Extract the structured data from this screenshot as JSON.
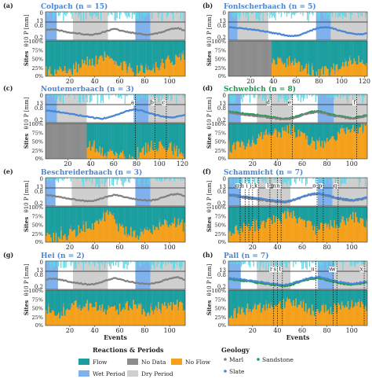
{
  "chart_data": {
    "type": "composite",
    "xlabel": "Events",
    "ylabels": {
      "precip": "P [mm]",
      "theta": "θ10",
      "sites": "Sites"
    },
    "precip_ticks": [
      "0",
      "13"
    ],
    "theta_ticks": [
      "0.8",
      "0.2"
    ],
    "sites_ticks": [
      "100%",
      "75%",
      "50%",
      "25%",
      "0%"
    ],
    "legend": {
      "reactions_title": "Reactions & Periods",
      "geology_title": "Geology",
      "items": [
        {
          "key": "flow",
          "label": "Flow",
          "color": "#1a9e9e"
        },
        {
          "key": "nodata",
          "label": "No Data",
          "color": "#8c8c8c"
        },
        {
          "key": "noflow",
          "label": "No Flow",
          "color": "#f5a01a"
        },
        {
          "key": "wet",
          "label": "Wet Period",
          "color": "#7fb2ec"
        },
        {
          "key": "dry",
          "label": "Dry Period",
          "color": "#cfcfcf"
        }
      ],
      "geology": [
        {
          "key": "marl",
          "label": "Marl",
          "color": "#808080"
        },
        {
          "key": "sandstone",
          "label": "Sandstone",
          "color": "#1c9c4c"
        },
        {
          "key": "slate",
          "label": "Slate",
          "color": "#4a86d4"
        }
      ]
    },
    "panels": [
      {
        "label": "(a)",
        "title": "Colpach (n = 15)",
        "title_color": "#4a86d4",
        "n_events": 112,
        "x_ticks": [
          20,
          40,
          60,
          80,
          100
        ],
        "periods": [
          {
            "type": "wet",
            "start": 1,
            "end": 9
          },
          {
            "type": "dry",
            "start": 23,
            "end": 50
          },
          {
            "type": "wet",
            "start": 73,
            "end": 84
          },
          {
            "type": "dry",
            "start": 85,
            "end": 112
          }
        ],
        "theta": [
          {
            "geology": "marl",
            "series": [
              0.58,
              0.62,
              0.55,
              0.48,
              0.42,
              0.38,
              0.32,
              0.36,
              0.44,
              0.56,
              0.64,
              0.52,
              0.46,
              0.4,
              0.36,
              0.34,
              0.4,
              0.5,
              0.62,
              0.68,
              0.56
            ]
          }
        ],
        "sites": {
          "nodata_first": 0,
          "noflow_profile": [
            0.1,
            0.12,
            0.2,
            0.35,
            0.45,
            0.55,
            0.3,
            0.15,
            0.18,
            0.3,
            0.45,
            0.6
          ]
        },
        "annotations": []
      },
      {
        "label": "(b)",
        "title": "Fonlscherbaach (n = 5)",
        "title_color": "#4a86d4",
        "n_events": 122,
        "x_ticks": [
          20,
          40,
          60,
          80,
          100,
          120
        ],
        "periods": [
          {
            "type": "wet",
            "start": 1,
            "end": 8
          },
          {
            "type": "dry",
            "start": 9,
            "end": 35
          },
          {
            "type": "wet",
            "start": 78,
            "end": 90
          },
          {
            "type": "dry",
            "start": 91,
            "end": 122
          }
        ],
        "theta": [
          {
            "geology": "slate",
            "series": [
              0.72,
              0.7,
              0.66,
              0.62,
              0.58,
              0.52,
              0.45,
              0.4,
              0.32,
              0.26,
              0.3,
              0.42,
              0.56,
              0.7,
              0.74,
              0.68,
              0.56,
              0.46,
              0.38,
              0.34,
              0.4
            ]
          }
        ],
        "sites": {
          "nodata_first": 38,
          "noflow_profile": [
            0.05,
            0.08,
            0.15,
            0.3,
            0.45,
            0.4,
            0.2,
            0.1,
            0.15,
            0.3,
            0.5,
            0.35
          ]
        },
        "annotations": []
      },
      {
        "label": "(c)",
        "title": "Noutemerbaach (n = 3)",
        "title_color": "#4a86d4",
        "n_events": 122,
        "x_ticks": [
          20,
          40,
          60,
          80,
          100,
          120
        ],
        "periods": [
          {
            "type": "wet",
            "start": 1,
            "end": 10
          },
          {
            "type": "dry",
            "start": 11,
            "end": 36
          },
          {
            "type": "wet",
            "start": 78,
            "end": 90
          },
          {
            "type": "dry",
            "start": 91,
            "end": 122
          }
        ],
        "theta": [
          {
            "geology": "slate",
            "series": [
              0.7,
              0.66,
              0.6,
              0.54,
              0.48,
              0.42,
              0.36,
              0.3,
              0.26,
              0.32,
              0.44,
              0.58,
              0.7,
              0.74,
              0.66,
              0.54,
              0.44,
              0.36,
              0.32,
              0.38,
              0.46
            ]
          }
        ],
        "sites": {
          "nodata_first": 36,
          "noflow_profile": [
            0.1,
            0.2,
            0.35,
            0.4,
            0.35,
            0.1,
            0.05,
            0.1,
            0.3,
            0.4,
            0.3,
            0.1
          ]
        },
        "annotations": [
          {
            "letter": "a",
            "event": 79
          },
          {
            "letter": "b",
            "event": 96
          },
          {
            "letter": "c",
            "event": 106
          }
        ]
      },
      {
        "label": "(d)",
        "title": "Schwebich (n = 8)",
        "title_color": "#1c9c4c",
        "n_events": 112,
        "x_ticks": [
          20,
          40,
          60,
          80,
          100
        ],
        "periods": [
          {
            "type": "wet",
            "start": 1,
            "end": 10
          },
          {
            "type": "dry",
            "start": 24,
            "end": 52
          },
          {
            "type": "wet",
            "start": 73,
            "end": 85
          },
          {
            "type": "dry",
            "start": 86,
            "end": 112
          }
        ],
        "theta": [
          {
            "geology": "sandstone",
            "series": [
              0.62,
              0.58,
              0.54,
              0.5,
              0.46,
              0.42,
              0.36,
              0.3,
              0.26,
              0.3,
              0.4,
              0.52,
              0.62,
              0.66,
              0.58,
              0.48,
              0.4,
              0.34,
              0.3,
              0.36,
              0.44
            ]
          },
          {
            "geology": "marl",
            "series": [
              0.56,
              0.52,
              0.48,
              0.44,
              0.4,
              0.36,
              0.3,
              0.26,
              0.22,
              0.26,
              0.36,
              0.48,
              0.56,
              0.6,
              0.52,
              0.42,
              0.36,
              0.3,
              0.26,
              0.32,
              0.4
            ]
          }
        ],
        "sites": {
          "nodata_first": 0,
          "noflow_profile": [
            0.3,
            0.35,
            0.5,
            0.65,
            0.75,
            0.85,
            0.6,
            0.4,
            0.5,
            0.7,
            0.8,
            0.9
          ]
        },
        "annotations": [
          {
            "letter": "d",
            "event": 35
          },
          {
            "letter": "e",
            "event": 52
          },
          {
            "letter": "f",
            "event": 104
          }
        ]
      },
      {
        "label": "(e)",
        "title": "Beschreiderbaach (n = 3)",
        "title_color": "#4a86d4",
        "n_events": 112,
        "x_ticks": [
          20,
          40,
          60,
          80,
          100
        ],
        "periods": [
          {
            "type": "wet",
            "start": 1,
            "end": 8
          },
          {
            "type": "dry",
            "start": 22,
            "end": 50
          },
          {
            "type": "wet",
            "start": 73,
            "end": 84
          },
          {
            "type": "dry",
            "start": 85,
            "end": 112
          }
        ],
        "theta": [
          {
            "geology": "marl",
            "series": [
              0.62,
              0.58,
              0.52,
              0.46,
              0.4,
              0.34,
              0.3,
              0.34,
              0.44,
              0.56,
              0.64,
              0.54,
              0.46,
              0.4,
              0.36,
              0.34,
              0.4,
              0.52,
              0.64,
              0.68,
              0.58
            ]
          }
        ],
        "sites": {
          "nodata_first": 0,
          "noflow_profile": [
            0.1,
            0.15,
            0.25,
            0.4,
            0.55,
            0.8,
            0.35,
            0.2,
            0.25,
            0.4,
            0.6,
            0.45
          ]
        },
        "annotations": []
      },
      {
        "label": "(f)",
        "title": "Schammicht (n = 7)",
        "title_color": "#4a86d4",
        "n_events": 112,
        "x_ticks": [
          20,
          40,
          60,
          80,
          100
        ],
        "periods": [
          {
            "type": "wet",
            "start": 1,
            "end": 10
          },
          {
            "type": "dry",
            "start": 24,
            "end": 50
          },
          {
            "type": "wet",
            "start": 73,
            "end": 84
          },
          {
            "type": "dry",
            "start": 85,
            "end": 112
          }
        ],
        "theta": [
          {
            "geology": "marl",
            "series": [
              0.6,
              0.56,
              0.5,
              0.44,
              0.4,
              0.36,
              0.3,
              0.26,
              0.24,
              0.3,
              0.42,
              0.56,
              0.64,
              0.68,
              0.6,
              0.5,
              0.42,
              0.36,
              0.32,
              0.38,
              0.46
            ]
          },
          {
            "geology": "slate",
            "series": [
              0.66,
              0.62,
              0.56,
              0.5,
              0.46,
              0.42,
              0.36,
              0.32,
              0.28,
              0.34,
              0.46,
              0.6,
              0.68,
              0.72,
              0.64,
              0.54,
              0.46,
              0.4,
              0.36,
              0.42,
              0.5
            ]
          }
        ],
        "sites": {
          "nodata_first": 0,
          "noflow_profile": [
            0.25,
            0.35,
            0.45,
            0.55,
            0.65,
            0.75,
            0.5,
            0.35,
            0.45,
            0.6,
            0.7,
            0.55
          ]
        },
        "annotations": [
          {
            "letter": "g",
            "event": 10
          },
          {
            "letter": "h",
            "event": 14
          },
          {
            "letter": "i",
            "event": 17
          },
          {
            "letter": "j",
            "event": 20
          },
          {
            "letter": "k",
            "event": 25
          },
          {
            "letter": "l",
            "event": 34
          },
          {
            "letter": "m",
            "event": 40
          },
          {
            "letter": "n",
            "event": 43
          },
          {
            "letter": "o",
            "event": 72
          },
          {
            "letter": "p",
            "event": 77
          },
          {
            "letter": "q",
            "event": 89
          }
        ]
      },
      {
        "label": "(g)",
        "title": "Hei (n = 2)",
        "title_color": "#4a86d4",
        "n_events": 112,
        "x_ticks": [
          20,
          40,
          60,
          80,
          100
        ],
        "periods": [
          {
            "type": "wet",
            "start": 1,
            "end": 10
          },
          {
            "type": "dry",
            "start": 23,
            "end": 50
          },
          {
            "type": "wet",
            "start": 73,
            "end": 84
          },
          {
            "type": "dry",
            "start": 85,
            "end": 112
          }
        ],
        "theta": [
          {
            "geology": "marl",
            "series": [
              0.58,
              0.62,
              0.56,
              0.48,
              0.42,
              0.36,
              0.3,
              0.34,
              0.44,
              0.56,
              0.64,
              0.54,
              0.46,
              0.4,
              0.36,
              0.34,
              0.4,
              0.52,
              0.64,
              0.68,
              0.56
            ]
          }
        ],
        "sites": {
          "nodata_first": 0,
          "noflow_profile": [
            0.4,
            0.3,
            0.5,
            0.6,
            0.5,
            0.4,
            0.5,
            0.6,
            0.4,
            0.5,
            0.6,
            0.5
          ]
        },
        "annotations": []
      },
      {
        "label": "(h)",
        "title": "Pall (n = 7)",
        "title_color": "#4a86d4",
        "n_events": 112,
        "x_ticks": [
          20,
          40,
          60,
          80,
          100
        ],
        "periods": [
          {
            "type": "wet",
            "start": 1,
            "end": 10
          },
          {
            "type": "dry",
            "start": 24,
            "end": 50
          },
          {
            "type": "wet",
            "start": 73,
            "end": 85
          },
          {
            "type": "dry",
            "start": 86,
            "end": 112
          }
        ],
        "theta": [
          {
            "geology": "sandstone",
            "series": [
              0.58,
              0.54,
              0.5,
              0.46,
              0.4,
              0.36,
              0.3,
              0.26,
              0.22,
              0.28,
              0.4,
              0.52,
              0.6,
              0.64,
              0.56,
              0.46,
              0.38,
              0.32,
              0.28,
              0.34,
              0.42
            ]
          },
          {
            "geology": "slate",
            "series": [
              0.64,
              0.6,
              0.56,
              0.52,
              0.46,
              0.42,
              0.36,
              0.32,
              0.28,
              0.34,
              0.46,
              0.58,
              0.66,
              0.7,
              0.62,
              0.52,
              0.44,
              0.38,
              0.34,
              0.4,
              0.48
            ]
          }
        ],
        "sites": {
          "nodata_first": 0,
          "noflow_profile": [
            0.3,
            0.4,
            0.5,
            0.55,
            0.6,
            0.65,
            0.5,
            0.4,
            0.45,
            0.55,
            0.6,
            0.5
          ]
        },
        "annotations": [
          {
            "letter": "r",
            "event": 37
          },
          {
            "letter": "s",
            "event": 40
          },
          {
            "letter": "t",
            "event": 44
          },
          {
            "letter": "u",
            "event": 71
          },
          {
            "letter": "v",
            "event": 85
          },
          {
            "letter": "w",
            "event": 88
          },
          {
            "letter": "x",
            "event": 110
          }
        ]
      }
    ]
  }
}
